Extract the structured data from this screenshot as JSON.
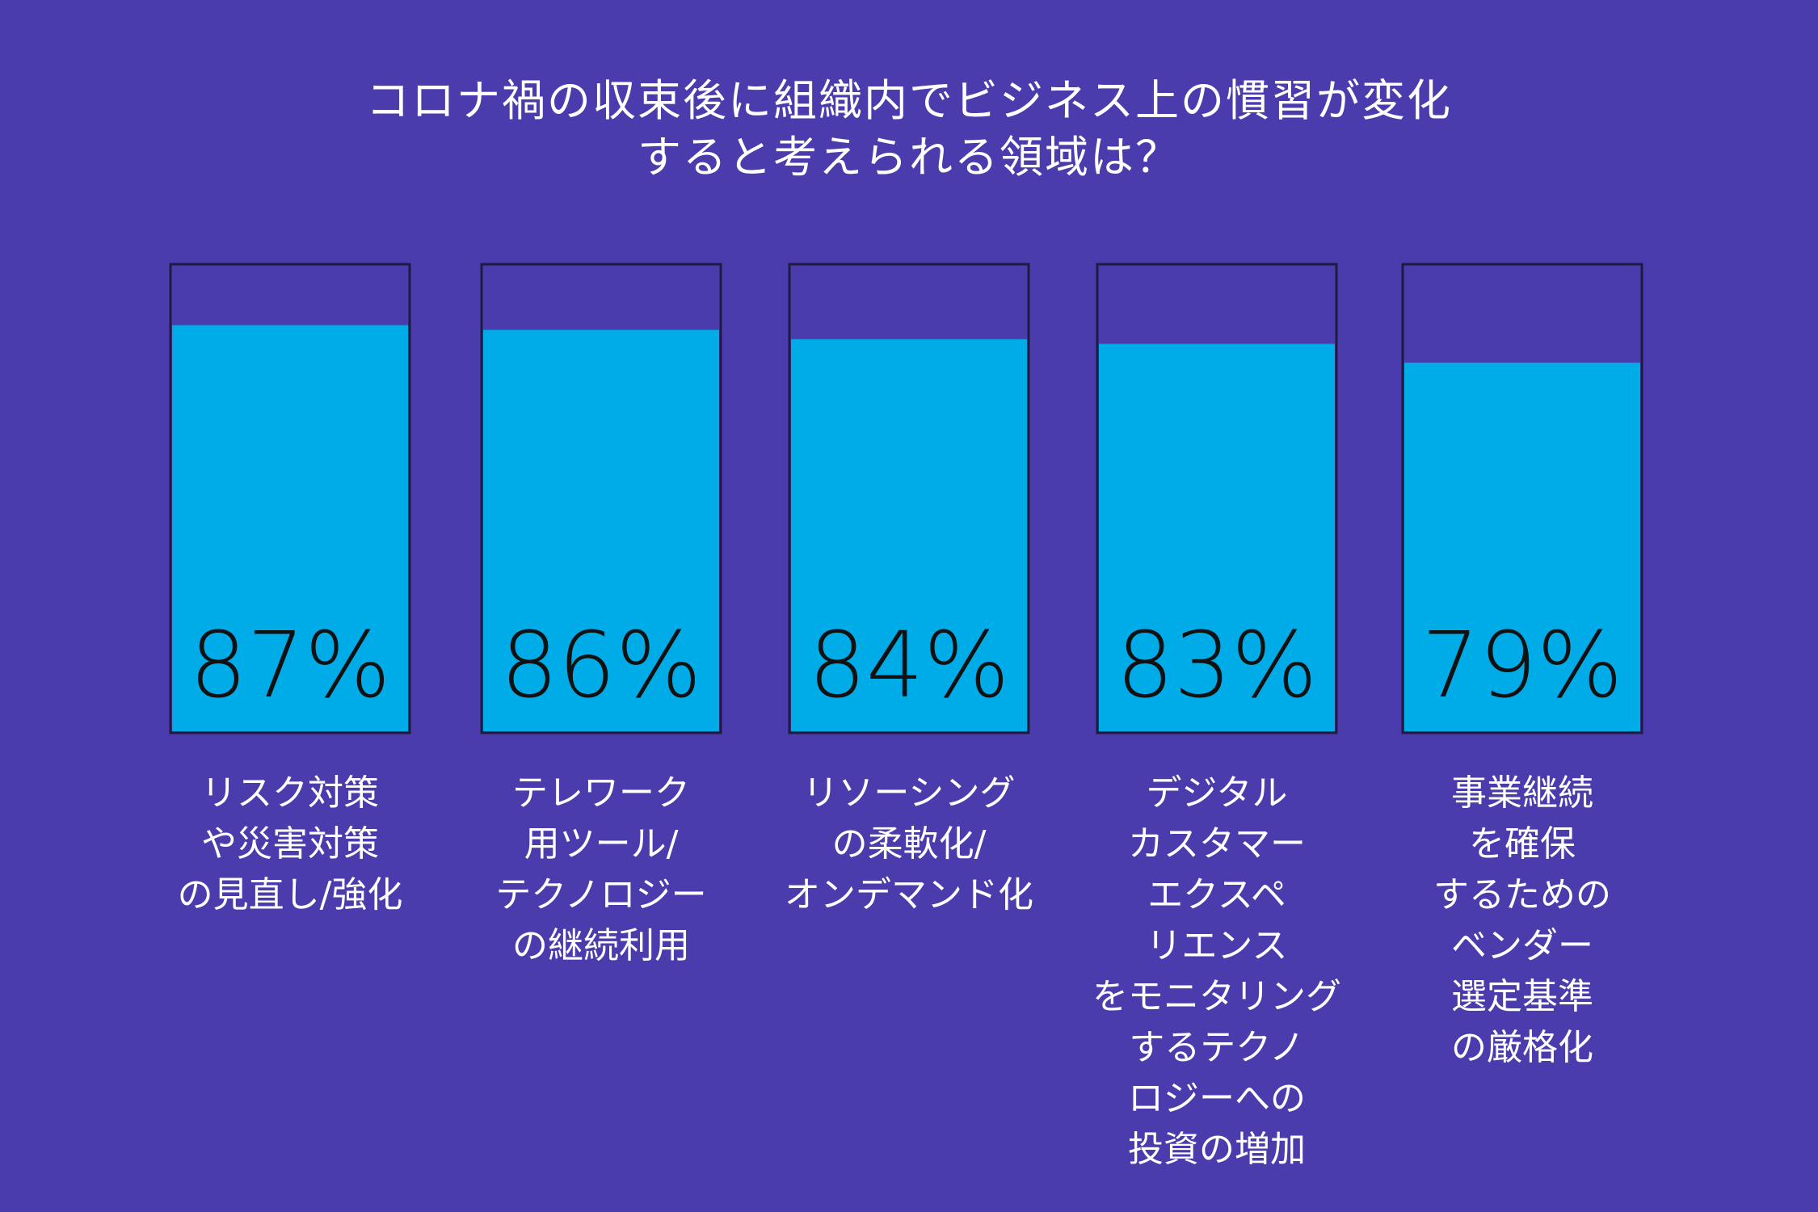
{
  "chart_data": {
    "type": "bar",
    "title": [
      "コロナ禍の収束後に組織内でビジネス上の慣習が変化",
      "すると考えられる領域は？"
    ],
    "categories": [
      [
        "リスク対策",
        "や災害対策",
        "の見直し/強化"
      ],
      [
        "テレワーク",
        "用ツール/",
        "テクノロジー",
        "の継続利用"
      ],
      [
        "リソーシング",
        "の柔軟化/",
        "オンデマンド化"
      ],
      [
        "デジタル",
        "カスタマー",
        "エクスペ",
        "リエンス",
        "をモニタリング",
        "するテクノ",
        "ロジーへの",
        "投資の増加"
      ],
      [
        "事業継続",
        "を確保",
        "するための",
        "ベンダー",
        "選定基準",
        "の厳格化"
      ]
    ],
    "values": [
      87,
      86,
      84,
      83,
      79
    ],
    "value_labels": [
      "87%",
      "86%",
      "84%",
      "83%",
      "79%"
    ],
    "ylim": [
      0,
      100
    ],
    "colors": {
      "background": "#4b3cad",
      "fill": "#00ace8",
      "outline": "#1f1a40",
      "value_text": "#111111"
    }
  }
}
